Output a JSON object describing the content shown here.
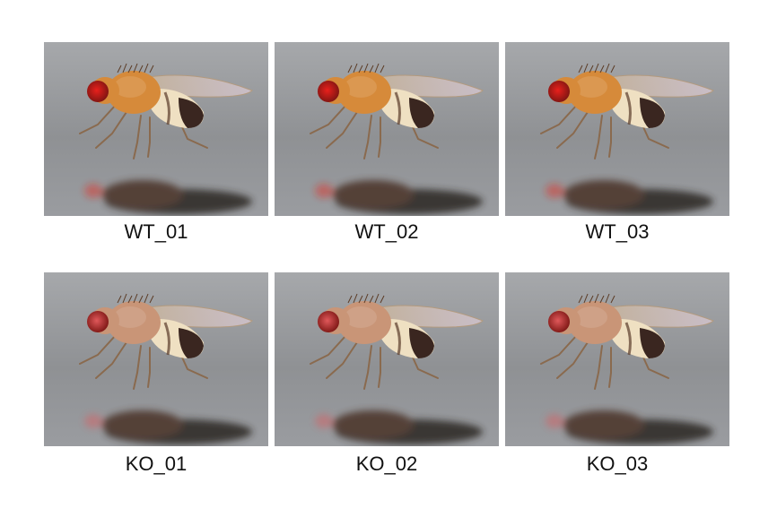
{
  "colors": {
    "background": "#ffffff",
    "wild_type_eye": "#e8201c",
    "knockout_eye": "#e0585a",
    "wild_type_body": "#d68a3a",
    "knockout_body": "#c99577",
    "surface": "#9a9c9f"
  },
  "panels": [
    {
      "label": "WT_01",
      "genotype": "wild-type",
      "eye_color": "#e8201c",
      "body_color": "#d68a3a"
    },
    {
      "label": "WT_02",
      "genotype": "wild-type",
      "eye_color": "#e8201c",
      "body_color": "#d68a3a"
    },
    {
      "label": "WT_03",
      "genotype": "wild-type",
      "eye_color": "#e8201c",
      "body_color": "#d68a3a"
    },
    {
      "label": "KO_01",
      "genotype": "knockout",
      "eye_color": "#e0585a",
      "body_color": "#c99577"
    },
    {
      "label": "KO_02",
      "genotype": "knockout",
      "eye_color": "#e0585a",
      "body_color": "#c99577"
    },
    {
      "label": "KO_03",
      "genotype": "knockout",
      "eye_color": "#e0585a",
      "body_color": "#c99577"
    }
  ]
}
